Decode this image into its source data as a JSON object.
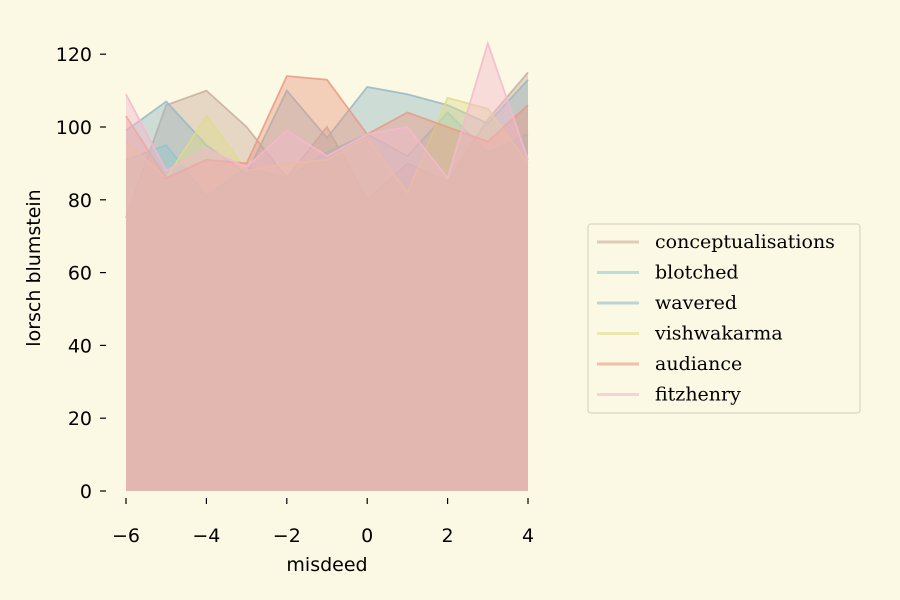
{
  "chart_data": {
    "type": "area",
    "stacked": false,
    "xlabel": "misdeed",
    "ylabel": "lorsch blumstein",
    "xlim": [
      -6,
      4
    ],
    "ylim": [
      0,
      125
    ],
    "xticks": [
      -6,
      -4,
      -2,
      0,
      2,
      4
    ],
    "yticks": [
      0,
      20,
      40,
      60,
      80,
      100,
      120
    ],
    "grid": false,
    "legend_position": "right",
    "x": [
      -6,
      -5,
      -4,
      -3,
      -2,
      -1,
      0,
      1,
      2,
      3,
      4
    ],
    "series": [
      {
        "name": "conceptualisations",
        "color": "#c9ae9e",
        "values": [
          75,
          106,
          110,
          100,
          86,
          100,
          80,
          90,
          85,
          102,
          115
        ]
      },
      {
        "name": "blotched",
        "color": "#8ecfd0",
        "values": [
          91,
          95,
          81,
          89,
          86,
          93,
          98,
          92,
          104,
          93,
          98
        ]
      },
      {
        "name": "wavered",
        "color": "#97b9c6",
        "values": [
          99,
          107,
          95,
          87,
          110,
          97,
          111,
          109,
          106,
          101,
          113
        ]
      },
      {
        "name": "vishwakarma",
        "color": "#dedc8c",
        "values": [
          96,
          86,
          103,
          88,
          90,
          91,
          97,
          82,
          108,
          105,
          90
        ]
      },
      {
        "name": "audiance",
        "color": "#e99a86",
        "values": [
          103,
          86,
          91,
          90,
          114,
          113,
          98,
          104,
          100,
          96,
          106
        ]
      },
      {
        "name": "fitzhenry",
        "color": "#f4b8cc",
        "values": [
          109,
          88,
          94,
          89,
          99,
          92,
          98,
          100,
          86,
          123,
          91
        ]
      }
    ]
  }
}
